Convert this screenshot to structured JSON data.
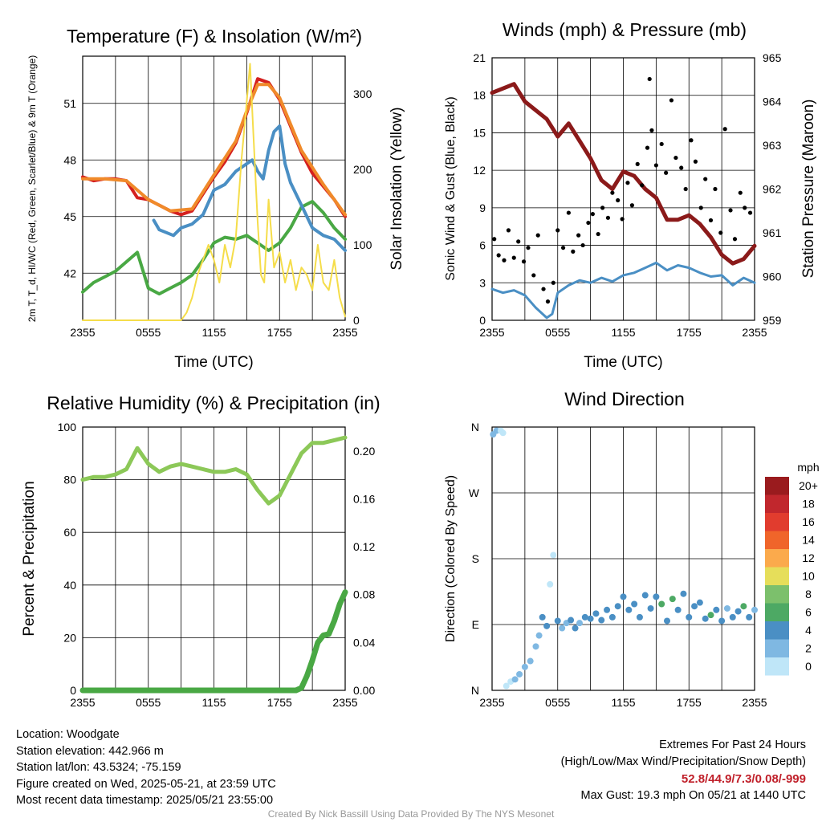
{
  "chart_data": [
    {
      "type": "line",
      "title": "Temperature (F) & Insolation (W/m²)",
      "xlabel": "Time (UTC)",
      "ylabel": "2m T, T_d, HI/WC (Red, Green, Scarlet/Blue) & 9m T (Orange)",
      "ylabel_right": "Solar Insolation (Yellow)",
      "x_ticks": [
        "2355",
        "0555",
        "1155",
        "1755",
        "2355"
      ],
      "ylim": [
        39.5,
        53.5
      ],
      "y_ticks": [
        42,
        45,
        48,
        51
      ],
      "ylim_right": [
        0,
        350
      ],
      "y_ticks_right": [
        0,
        100,
        200,
        300
      ],
      "grid": true,
      "series": [
        {
          "name": "2m T",
          "color": "#d4201f",
          "axis": "left",
          "hours": [
            0,
            1,
            2,
            3,
            4,
            5,
            6,
            7,
            8,
            9,
            10,
            11,
            12,
            13,
            14,
            15,
            16,
            17,
            18,
            19,
            20,
            21,
            22,
            23,
            24
          ],
          "values": [
            47.1,
            46.9,
            47.0,
            47.0,
            46.9,
            46.0,
            45.9,
            45.6,
            45.3,
            45.1,
            45.3,
            46.2,
            47.1,
            47.9,
            48.9,
            50.5,
            52.3,
            52.1,
            51.2,
            49.8,
            48.4,
            47.3,
            46.6,
            45.9,
            45.0
          ]
        },
        {
          "name": "9m T",
          "color": "#f08a2a",
          "axis": "left",
          "hours": [
            0,
            2,
            4,
            6,
            8,
            10,
            12,
            14,
            15,
            16,
            17,
            18,
            20,
            22,
            24
          ],
          "values": [
            47.0,
            47.0,
            46.9,
            45.9,
            45.3,
            45.4,
            47.2,
            49.0,
            50.6,
            52.0,
            52.0,
            51.3,
            48.5,
            46.7,
            45.1
          ]
        },
        {
          "name": "T_d",
          "color": "#49a844",
          "axis": "left",
          "hours": [
            0,
            1,
            2,
            3,
            4,
            5,
            6,
            7,
            8,
            9,
            10,
            11,
            12,
            13,
            14,
            15,
            16,
            17,
            18,
            19,
            20,
            21,
            22,
            23,
            24
          ],
          "values": [
            41.0,
            41.5,
            41.8,
            42.1,
            42.6,
            43.1,
            41.2,
            40.9,
            41.2,
            41.5,
            41.9,
            42.7,
            43.6,
            43.9,
            43.8,
            44.0,
            43.6,
            43.2,
            43.6,
            44.4,
            45.5,
            45.8,
            45.2,
            44.4,
            43.8
          ]
        },
        {
          "name": "HI/WC",
          "color": "#4a8fc4",
          "axis": "left",
          "hours": [
            6.5,
            7,
            8.3,
            9,
            10,
            11,
            12,
            13,
            14,
            15,
            15.5,
            16,
            16.5,
            17,
            17.5,
            18,
            18.5,
            19,
            20,
            21,
            22,
            23,
            24
          ],
          "values": [
            44.8,
            44.3,
            44.0,
            44.4,
            44.6,
            45.1,
            46.4,
            46.7,
            47.4,
            47.8,
            48.0,
            47.4,
            47.0,
            48.5,
            49.5,
            49.8,
            47.8,
            46.8,
            45.6,
            44.4,
            44.0,
            43.8,
            43.2
          ]
        },
        {
          "name": "Solar Insolation",
          "color": "#f5dd4a",
          "axis": "right",
          "hours": [
            0,
            3,
            6,
            9,
            9.5,
            10,
            10.5,
            11,
            11.5,
            12,
            12.5,
            13,
            13.5,
            14,
            14.5,
            15,
            15.3,
            15.6,
            16,
            16.3,
            16.6,
            17,
            17.5,
            18,
            18.5,
            19,
            19.5,
            20,
            20.5,
            21,
            21.5,
            22,
            22.5,
            23,
            23.5,
            24
          ],
          "values": [
            0,
            0,
            0,
            0,
            10,
            30,
            60,
            80,
            100,
            80,
            50,
            100,
            70,
            110,
            210,
            290,
            340,
            250,
            130,
            60,
            50,
            160,
            70,
            90,
            50,
            80,
            40,
            70,
            60,
            40,
            100,
            50,
            40,
            80,
            30,
            5
          ]
        }
      ]
    },
    {
      "type": "scatter",
      "title": "Winds (mph) & Pressure (mb)",
      "xlabel": "Time (UTC)",
      "ylabel": "Sonic Wind & Gust (Blue, Black)",
      "ylabel_right": "Station Pressure (Maroon)",
      "x_ticks": [
        "2355",
        "0555",
        "1155",
        "1755",
        "2355"
      ],
      "ylim": [
        0,
        21
      ],
      "y_ticks": [
        0,
        3,
        6,
        9,
        12,
        15,
        18,
        21
      ],
      "ylim_right": [
        959,
        965
      ],
      "y_ticks_right": [
        959,
        960,
        961,
        962,
        963,
        964,
        965
      ],
      "grid": true,
      "series": [
        {
          "name": "Station Pressure",
          "color": "#8b1a1a",
          "axis": "right",
          "hours": [
            0,
            1,
            2,
            3,
            4,
            5,
            6,
            7,
            8,
            9,
            10,
            11,
            12,
            13,
            14,
            15,
            16,
            17,
            18,
            19,
            20,
            21,
            22,
            23,
            24
          ],
          "values": [
            964.2,
            964.3,
            964.4,
            964.0,
            963.8,
            963.6,
            963.2,
            963.5,
            963.1,
            962.7,
            962.2,
            962.0,
            962.4,
            962.3,
            962.0,
            961.8,
            961.3,
            961.3,
            961.4,
            961.2,
            960.9,
            960.5,
            960.3,
            960.4,
            960.7
          ]
        },
        {
          "name": "Sonic Wind",
          "color": "#4a8fc4",
          "axis": "left",
          "hours": [
            0,
            1,
            2,
            3,
            4,
            5,
            5.5,
            6,
            7,
            8,
            9,
            10,
            11,
            12,
            13,
            14,
            15,
            16,
            17,
            18,
            19,
            20,
            21,
            22,
            23,
            24
          ],
          "values": [
            2.5,
            2.2,
            2.4,
            2.0,
            1.0,
            0.2,
            0.5,
            2.2,
            2.8,
            3.2,
            3.0,
            3.4,
            3.1,
            3.6,
            3.8,
            4.2,
            4.6,
            4.0,
            4.4,
            4.2,
            3.8,
            3.5,
            3.6,
            2.8,
            3.4,
            3.0
          ]
        },
        {
          "name": "Gust",
          "color": "#000000",
          "axis": "left",
          "hours": [
            0.2,
            0.6,
            1.1,
            1.5,
            2.0,
            2.4,
            2.9,
            3.3,
            3.8,
            4.2,
            4.7,
            5.1,
            5.6,
            6.0,
            6.5,
            7.0,
            7.4,
            7.9,
            8.3,
            8.8,
            9.2,
            9.7,
            10.1,
            10.6,
            11.0,
            11.5,
            11.9,
            12.4,
            12.8,
            13.3,
            13.7,
            14.2,
            14.4,
            14.6,
            15.0,
            15.5,
            15.9,
            16.4,
            16.8,
            17.3,
            17.7,
            18.2,
            18.6,
            19.1,
            19.5,
            20.0,
            20.4,
            20.9,
            21.3,
            21.8,
            22.2,
            22.7,
            23.1,
            23.6
          ],
          "values": [
            6.5,
            5.2,
            4.8,
            7.2,
            5.0,
            6.3,
            4.7,
            5.8,
            3.6,
            6.8,
            2.5,
            1.5,
            3.0,
            7.2,
            5.8,
            8.6,
            5.5,
            6.8,
            6.0,
            7.8,
            8.5,
            6.9,
            9.0,
            8.2,
            10.2,
            9.6,
            8.1,
            11.0,
            9.2,
            12.5,
            10.8,
            13.8,
            19.3,
            15.2,
            12.4,
            14.1,
            11.8,
            17.6,
            13.0,
            12.2,
            10.5,
            14.4,
            12.7,
            9.0,
            11.3,
            8.0,
            10.5,
            7.0,
            15.3,
            8.8,
            6.5,
            10.2,
            9.0,
            8.6
          ]
        }
      ]
    },
    {
      "type": "line",
      "title": "Relative Humidity (%) & Precipitation (in)",
      "ylabel": "Percent & Precipitation",
      "x_ticks": [
        "2355",
        "0555",
        "1155",
        "1755",
        "2355"
      ],
      "ylim": [
        0,
        100
      ],
      "y_ticks": [
        0,
        20,
        40,
        60,
        80,
        100
      ],
      "ylim_right": [
        0,
        0.22
      ],
      "y_ticks_right": [
        "0.00",
        "0.04",
        "0.08",
        "0.12",
        "0.16",
        "0.20"
      ],
      "grid": true,
      "series": [
        {
          "name": "Relative Humidity",
          "color": "#8cc858",
          "axis": "left",
          "hours": [
            0,
            1,
            2,
            3,
            4,
            5,
            6,
            7,
            8,
            9,
            10,
            11,
            12,
            13,
            14,
            15,
            16,
            17,
            18,
            19,
            20,
            21,
            22,
            23,
            24
          ],
          "values": [
            80,
            81,
            81,
            82,
            84,
            92,
            86,
            83,
            85,
            86,
            85,
            84,
            83,
            83,
            84,
            82,
            76,
            71,
            74,
            82,
            90,
            94,
            94,
            95,
            96
          ]
        },
        {
          "name": "Precipitation",
          "color": "#49a844",
          "axis": "right",
          "hours": [
            0,
            19.5,
            20.0,
            20.5,
            21.0,
            21.5,
            22.0,
            22.5,
            23.0,
            23.5,
            24.0
          ],
          "values": [
            0,
            0,
            0.002,
            0.012,
            0.025,
            0.04,
            0.046,
            0.047,
            0.058,
            0.072,
            0.082
          ]
        }
      ]
    },
    {
      "type": "scatter",
      "title": "Wind Direction",
      "ylabel": "Direction (Colored By Speed)",
      "x_ticks": [
        "2355",
        "0555",
        "1155",
        "1755",
        "2355"
      ],
      "y_ticks": [
        "N",
        "E",
        "S",
        "W",
        "N"
      ],
      "ylim": [
        0,
        360
      ],
      "grid": true,
      "legend": {
        "title": "mph",
        "placement": "right",
        "labels": [
          "20+",
          "18",
          "16",
          "14",
          "12",
          "10",
          "8",
          "6",
          "4",
          "2",
          "0"
        ],
        "colors": [
          "#9a1b1e",
          "#c1272d",
          "#e13c2e",
          "#f0652a",
          "#fbaa4c",
          "#e6de5a",
          "#7cc06c",
          "#4da964",
          "#4a8fc4",
          "#7fb8e2",
          "#bfe6f8"
        ]
      },
      "points": {
        "hours": [
          0.1,
          0.4,
          0.8,
          1.0,
          1.3,
          1.7,
          2.1,
          2.5,
          3.0,
          3.5,
          4.0,
          4.3,
          4.6,
          5.0,
          5.3,
          5.6,
          6.0,
          6.4,
          6.8,
          7.2,
          7.6,
          8.0,
          8.5,
          9.0,
          9.5,
          10.0,
          10.5,
          11.0,
          11.5,
          12.0,
          12.5,
          13.0,
          13.5,
          14.0,
          14.5,
          15.0,
          15.5,
          16.0,
          16.5,
          17.0,
          17.5,
          18.0,
          18.5,
          19.0,
          19.5,
          20.0,
          20.5,
          21.0,
          21.5,
          22.0,
          22.5,
          23.0,
          23.5,
          24.0
        ],
        "degrees": [
          350,
          355,
          355,
          352,
          6,
          12,
          15,
          22,
          32,
          40,
          60,
          75,
          100,
          88,
          145,
          185,
          95,
          85,
          92,
          96,
          85,
          92,
          100,
          98,
          105,
          96,
          110,
          100,
          115,
          128,
          110,
          118,
          100,
          130,
          112,
          128,
          118,
          95,
          125,
          110,
          132,
          100,
          115,
          120,
          98,
          103,
          110,
          95,
          112,
          100,
          108,
          115,
          100,
          110
        ],
        "speeds": [
          2,
          2,
          1,
          1,
          1,
          1,
          2,
          2,
          2,
          2,
          2,
          3,
          4,
          4,
          1,
          1,
          4,
          3,
          3,
          4,
          4,
          3,
          4,
          4,
          4,
          4,
          4,
          4,
          4,
          4,
          4,
          4,
          4,
          4,
          5,
          4,
          7,
          4,
          6,
          5,
          4,
          4,
          4,
          4,
          4,
          6,
          4,
          4,
          3,
          4,
          4,
          7,
          4,
          3
        ]
      }
    }
  ],
  "footer": {
    "location": "Location: Woodgate",
    "elevation": "Station elevation: 442.966 m",
    "latlon": "Station lat/lon: 43.5324; -75.159",
    "created": "Figure created on Wed, 2025-05-21, at 23:59 UTC",
    "recent": "Most recent data timestamp: 2025/05/21 23:55:00",
    "extremes_title": "Extremes For Past 24 Hours",
    "extremes_subtitle": "(High/Low/Max Wind/Precipitation/Snow Depth)",
    "extremes_values": "52.8/44.9/7.3/0.08/-999",
    "max_gust": "Max Gust: 19.3 mph On 05/21 at 1440 UTC",
    "credit": "Created By Nick Bassill Using Data Provided By The NYS Mesonet"
  }
}
